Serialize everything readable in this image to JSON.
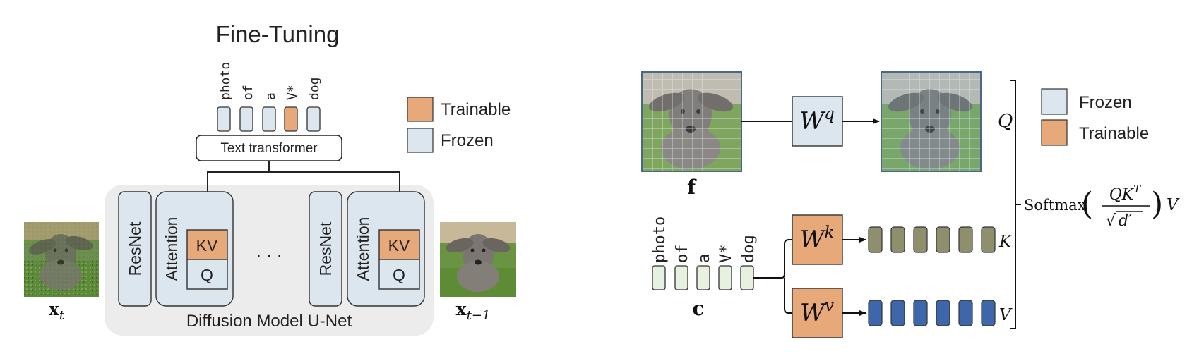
{
  "left": {
    "title": "Fine-Tuning",
    "tokens": [
      "photo",
      "of",
      "a",
      "V*",
      "dog"
    ],
    "text_encoder": "Text transformer",
    "legend": {
      "trainable": "Trainable",
      "frozen": "Frozen"
    },
    "blocks": {
      "resnet": "ResNet",
      "attention": "Attention",
      "kv": "KV",
      "q": "Q",
      "ellipsis": "· · ·"
    },
    "unet_label": "Diffusion Model U-Net",
    "input_label": "x",
    "input_sub": "t",
    "output_label": "x",
    "output_sub": "t−1"
  },
  "right": {
    "feature_label": "f",
    "text_label": "c",
    "tokens": [
      "photo",
      "of",
      "a",
      "V*",
      "dog"
    ],
    "wq": {
      "base": "W",
      "sup": "q"
    },
    "wk": {
      "base": "W",
      "sup": "k"
    },
    "wv": {
      "base": "W",
      "sup": "v"
    },
    "q_label": "Q",
    "k_label": "K",
    "v_label": "V",
    "softmax": {
      "name": "Softmax",
      "num": "QK",
      "num_sup": "T",
      "den": "d′",
      "tail": "V"
    },
    "legend": {
      "frozen": "Frozen",
      "trainable": "Trainable"
    }
  },
  "colors": {
    "trainable": "#e8a97a",
    "frozen": "#dbe6ee",
    "unet_bg": "#ececec",
    "token_fill": "#e6f2df",
    "key_token": "#8f8f6e",
    "value_token": "#3d67aa",
    "image_border": "#4a6785"
  }
}
